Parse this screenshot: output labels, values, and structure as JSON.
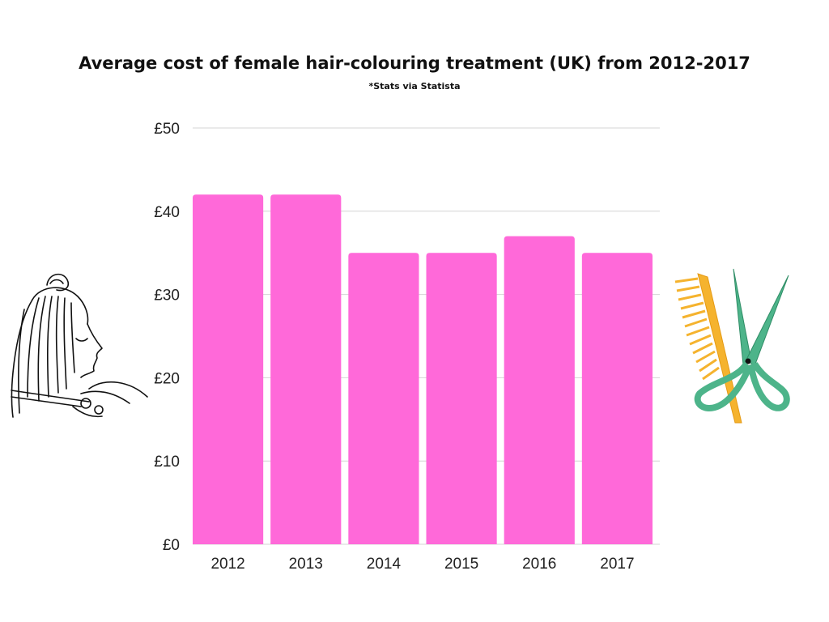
{
  "title": "Average cost of female hair-colouring treatment (UK) from 2012-2017",
  "subtitle": "*Stats via Statista",
  "colors": {
    "bar": "#ff69d9",
    "grid": "#d4d4d4",
    "comb": "#f5b32e",
    "scissors": "#4db48a"
  },
  "icons": [
    "hairdresser-illustration",
    "comb-and-scissors-illustration"
  ],
  "chart_data": {
    "type": "bar",
    "categories": [
      "2012",
      "2013",
      "2014",
      "2015",
      "2016",
      "2017"
    ],
    "values": [
      42,
      42,
      35,
      35,
      37,
      35
    ],
    "title": "Average cost of female hair-colouring treatment (UK) from 2012-2017",
    "xlabel": "",
    "ylabel": "",
    "ylim": [
      0,
      50
    ],
    "yticks": [
      0,
      10,
      20,
      30,
      40,
      50
    ],
    "ytick_labels": [
      "£0",
      "£10",
      "£20",
      "£30",
      "£40",
      "£50"
    ],
    "grid": true,
    "legend": "none"
  }
}
